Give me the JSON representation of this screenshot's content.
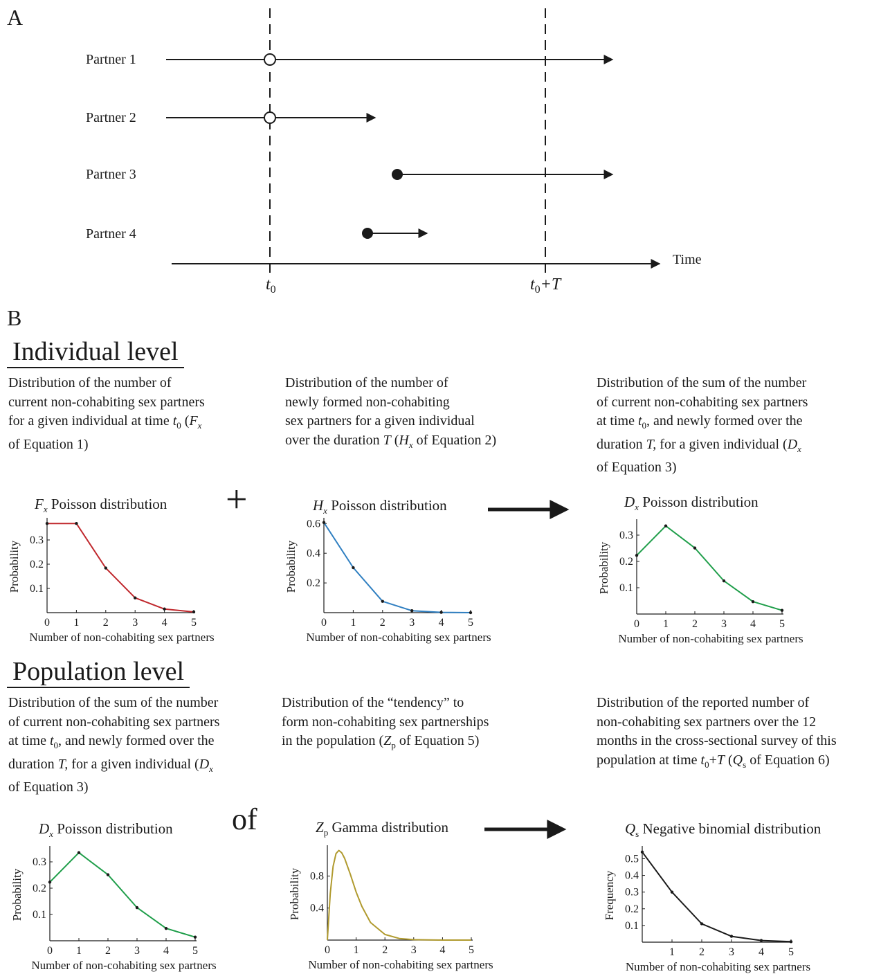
{
  "panel_a": {
    "label": "A",
    "partners": [
      "Partner 1",
      "Partner 2",
      "Partner 3",
      "Partner 4"
    ],
    "time_label": "Time",
    "t0_main": "t",
    "t0_sub": "0",
    "t0T_main": "t",
    "t0T_sub": "0",
    "t0T_suffix": "+T"
  },
  "panel_b": {
    "label": "B",
    "individual": {
      "heading": "Individual level",
      "desc1": {
        "l1": "Distribution of the number of",
        "l2": "current non-cohabiting sex partners",
        "l3a": "for a given individual at time ",
        "l3b": "t",
        "l3c": "0",
        "l3d": " (",
        "l3e": "F",
        "l3f": "x",
        "l4": "of Equation 1)"
      },
      "desc2": {
        "l1": "Distribution of the number of",
        "l2": "newly formed non-cohabiting",
        "l3": "sex partners for a given individual",
        "l4a": "over the duration ",
        "l4b": "T",
        "l4c": " (",
        "l4d": "H",
        "l4e": "x",
        "l4f": " of Equation 2)"
      },
      "desc3": {
        "l1": "Distribution of the sum of the number",
        "l2": "of current non-cohabiting sex partners",
        "l3a": "at time ",
        "l3b": "t",
        "l3c": "0",
        "l3d": ", and newly formed over the",
        "l4a": "duration ",
        "l4b": "T,",
        "l4c": " for a given individual (",
        "l4d": "D",
        "l4e": "x",
        "l5": "of Equation 3)"
      },
      "plus": "+"
    },
    "population": {
      "heading": "Population level",
      "desc1": {
        "l1": "Distribution of the sum of the number",
        "l2": "of current non-cohabiting sex partners",
        "l3a": "at time ",
        "l3b": "t",
        "l3c": "0",
        "l3d": ", and newly formed over the",
        "l4a": "duration ",
        "l4b": "T,",
        "l4c": " for a given individual (",
        "l4d": "D",
        "l4e": "x",
        "l5": "of Equation 3)"
      },
      "desc2": {
        "l1": "Distribution of the “tendency” to",
        "l2": "form non-cohabiting sex partnerships",
        "l3a": "in the population (",
        "l3b": "Z",
        "l3c": "p",
        "l3d": " of Equation 5)"
      },
      "desc3": {
        "l1": "Distribution of the reported number of",
        "l2": "non-cohabiting sex partners over the 12",
        "l3": "months in the cross-sectional survey of this",
        "l4a": "population at time ",
        "l4b": "t",
        "l4c": "0",
        "l4d": "+",
        "l4e": "T",
        "l4f": " (",
        "l4g": "Q",
        "l4h": "s",
        "l4i": " of Equation 6)"
      },
      "of": "of"
    }
  },
  "chart_data": [
    {
      "id": "fx",
      "type": "line",
      "color": "#c0282d",
      "title_sym": "F",
      "title_sub": "x",
      "title": "Poisson distribution",
      "xlabel": "Number of non-cohabiting sex partners",
      "ylabel": "Probability",
      "x": [
        0,
        1,
        2,
        3,
        4,
        5
      ],
      "y": [
        0.368,
        0.368,
        0.184,
        0.061,
        0.015,
        0.003
      ],
      "xlim": [
        0,
        5
      ],
      "ylim": [
        0,
        0.38
      ],
      "yticks": [
        0.1,
        0.2,
        0.3
      ],
      "ytick_labels": [
        "0.1",
        "0.2",
        "0.3"
      ],
      "xticks": [
        0,
        1,
        2,
        3,
        4,
        5
      ],
      "xtick_labels": [
        "0",
        "1",
        "2",
        "3",
        "4",
        "5"
      ]
    },
    {
      "id": "hx",
      "type": "line",
      "color": "#2f7fc1",
      "title_sym": "H",
      "title_sub": "x",
      "title": "Poisson distribution",
      "xlabel": "Number of non-cohabiting sex partners",
      "ylabel": "Probability",
      "x": [
        0,
        1,
        2,
        3,
        4,
        5
      ],
      "y": [
        0.607,
        0.303,
        0.076,
        0.013,
        0.002,
        0.0
      ],
      "xlim": [
        0,
        5
      ],
      "ylim": [
        0,
        0.62
      ],
      "yticks": [
        0.2,
        0.4,
        0.6
      ],
      "ytick_labels": [
        "0.2",
        "0.4",
        "0.6"
      ],
      "xticks": [
        0,
        1,
        2,
        3,
        4,
        5
      ],
      "xtick_labels": [
        "0",
        "1",
        "2",
        "3",
        "4",
        "5"
      ]
    },
    {
      "id": "dx",
      "type": "line",
      "color": "#1f9e4a",
      "title_sym": "D",
      "title_sub": "x",
      "title": "Poisson distribution",
      "xlabel": "Number of non-cohabiting sex partners",
      "ylabel": "Probability",
      "x": [
        0,
        1,
        2,
        3,
        4,
        5
      ],
      "y": [
        0.223,
        0.335,
        0.251,
        0.126,
        0.047,
        0.014
      ],
      "xlim": [
        0,
        5
      ],
      "ylim": [
        0,
        0.35
      ],
      "yticks": [
        0.1,
        0.2,
        0.3
      ],
      "ytick_labels": [
        "0.1",
        "0.2",
        "0.3"
      ],
      "xticks": [
        0,
        1,
        2,
        3,
        4,
        5
      ],
      "xtick_labels": [
        "0",
        "1",
        "2",
        "3",
        "4",
        "5"
      ]
    },
    {
      "id": "dx2",
      "type": "line",
      "color": "#1f9e4a",
      "title_sym": "D",
      "title_sub": "x",
      "title": "Poisson distribution",
      "xlabel": "Number of non-cohabiting sex partners",
      "ylabel": "Probability",
      "x": [
        0,
        1,
        2,
        3,
        4,
        5
      ],
      "y": [
        0.223,
        0.335,
        0.251,
        0.126,
        0.047,
        0.014
      ],
      "xlim": [
        0,
        5
      ],
      "ylim": [
        0,
        0.35
      ],
      "yticks": [
        0.1,
        0.2,
        0.3
      ],
      "ytick_labels": [
        "0.1",
        "0.2",
        "0.3"
      ],
      "xticks": [
        0,
        1,
        2,
        3,
        4,
        5
      ],
      "xtick_labels": [
        "0",
        "1",
        "2",
        "3",
        "4",
        "5"
      ]
    },
    {
      "id": "zp",
      "type": "line",
      "color": "#b09a2e",
      "curve": true,
      "title_sym": "Z",
      "title_sub": "p",
      "title": "Gamma distribution",
      "xlabel": "Number of non-cohabiting sex partners",
      "ylabel": "Probability",
      "x": [
        0,
        0.1,
        0.2,
        0.3,
        0.4,
        0.5,
        0.6,
        0.8,
        1.0,
        1.2,
        1.5,
        2.0,
        2.5,
        3.0,
        4.0,
        5.0
      ],
      "y": [
        0,
        0.58,
        0.92,
        1.08,
        1.12,
        1.09,
        1.02,
        0.82,
        0.6,
        0.42,
        0.22,
        0.07,
        0.02,
        0.005,
        0.0,
        0.0
      ],
      "xlim": [
        0,
        5
      ],
      "ylim": [
        0,
        1.15
      ],
      "yticks": [
        0.4,
        0.8
      ],
      "ytick_labels": [
        "0.4",
        "0.8"
      ],
      "xticks": [
        0,
        1,
        2,
        3,
        4,
        5
      ],
      "xtick_labels": [
        "0",
        "1",
        "2",
        "3",
        "4",
        "5"
      ]
    },
    {
      "id": "qs",
      "type": "line",
      "color": "#1a1a1a",
      "title_sym": "Q",
      "title_sub": "s",
      "title": "Negative binomial distribution",
      "xlabel": "Number of non-cohabiting sex partners",
      "ylabel": "Frequency",
      "x": [
        0,
        1,
        2,
        3,
        4,
        5
      ],
      "y": [
        0.54,
        0.3,
        0.11,
        0.035,
        0.01,
        0.003
      ],
      "xlim": [
        0,
        5
      ],
      "ylim": [
        0,
        0.56
      ],
      "yticks": [
        0.1,
        0.2,
        0.3,
        0.4,
        0.5
      ],
      "ytick_labels": [
        "0.1",
        "0.2",
        "0.3",
        "0.4",
        "0.5"
      ],
      "xticks": [
        1,
        2,
        3,
        4,
        5
      ],
      "xtick_labels": [
        "1",
        "2",
        "3",
        "4",
        "5"
      ]
    }
  ]
}
